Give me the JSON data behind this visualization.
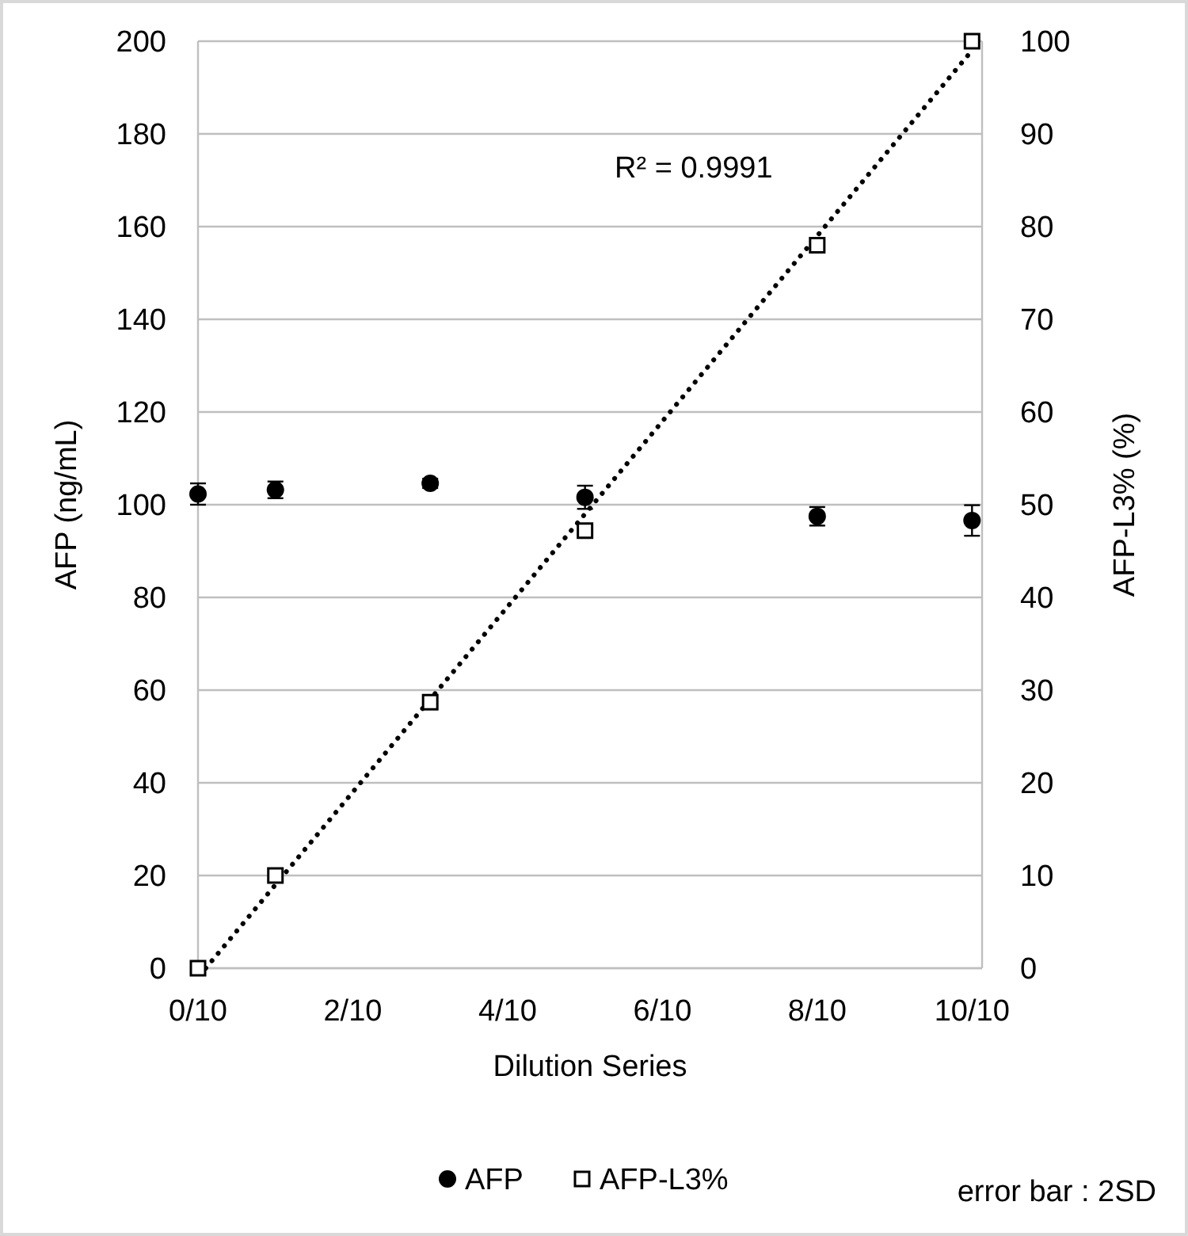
{
  "chart_data": {
    "type": "scatter",
    "xlabel": "Dilution Series",
    "ylabel": "AFP (ng/mL)",
    "y2label": "AFP-L3% (%)",
    "xlim": [
      0,
      1.013
    ],
    "xticks": [
      {
        "value": 0,
        "label": "0/10"
      },
      {
        "value": 0.2,
        "label": "2/10"
      },
      {
        "value": 0.4,
        "label": "4/10"
      },
      {
        "value": 0.6,
        "label": "6/10"
      },
      {
        "value": 0.8,
        "label": "8/10"
      },
      {
        "value": 1,
        "label": "10/10"
      }
    ],
    "ylim": [
      0,
      200
    ],
    "yticks": [
      0,
      20,
      40,
      60,
      80,
      100,
      120,
      140,
      160,
      180,
      200
    ],
    "y2lim": [
      0,
      100
    ],
    "y2ticks": [
      0,
      10,
      20,
      30,
      40,
      50,
      60,
      70,
      80,
      90,
      100
    ],
    "grid": "y",
    "legend": "bottom",
    "series": [
      {
        "name": "AFP",
        "marker": "circle",
        "color": "#000000",
        "x": [
          0,
          0.1,
          0.3,
          0.5,
          0.8,
          1
        ],
        "values": [
          102.3,
          103.2,
          104.6,
          101.6,
          97.5,
          96.6
        ],
        "errors": [
          2.3,
          1.8,
          1,
          2.5,
          2,
          3.3
        ]
      },
      {
        "name": "AFP-L3%",
        "marker": "square",
        "axis": "y2",
        "color": "#000000",
        "x": [
          0,
          0.1,
          0.3,
          0.5,
          0.8,
          1
        ],
        "values": [
          0,
          10,
          28.7,
          47.2,
          78,
          100
        ]
      },
      {
        "type": "line",
        "axis": "y2",
        "line_style": "dotted",
        "marker": "none",
        "color": "#000000",
        "x": [
          0.01,
          1
        ],
        "values": [
          0,
          99
        ]
      }
    ],
    "annotations": [
      "R² = 0.9991",
      "error bar : 2SD"
    ]
  }
}
